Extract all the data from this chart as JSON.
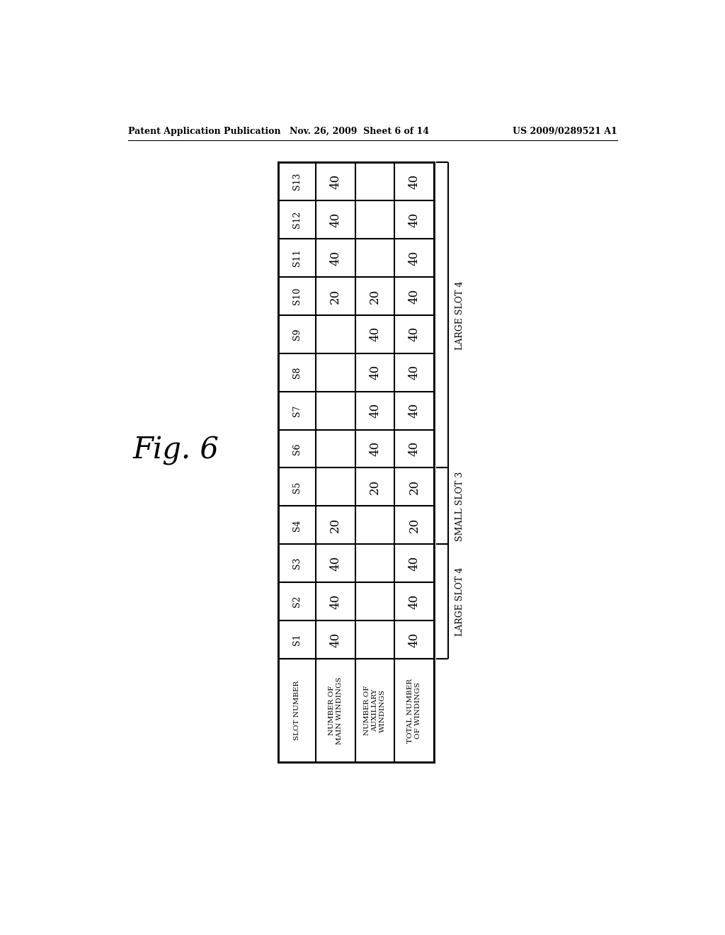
{
  "title_left": "Patent Application Publication",
  "title_mid": "Nov. 26, 2009  Sheet 6 of 14",
  "title_right": "US 2009/0289521 A1",
  "fig_label": "Fig. 6",
  "slots_top_to_bottom": [
    "S13",
    "S12",
    "S11",
    "S10",
    "S9",
    "S8",
    "S7",
    "S6",
    "S5",
    "S4",
    "S3",
    "S2",
    "S1"
  ],
  "col_headers_bottom": [
    "SLOT NUMBER",
    "NUMBER OF\nMAIN WINDINGS",
    "NUMBER OF\nAUXILIARY\nWINDINGS",
    "TOTAL NUMBER\nOF WINDINGS"
  ],
  "main_windings_top_to_bottom": [
    40,
    40,
    40,
    20,
    "",
    "",
    "",
    "",
    "",
    20,
    40,
    40,
    40
  ],
  "aux_windings_top_to_bottom": [
    "",
    "",
    "",
    20,
    40,
    40,
    40,
    40,
    20,
    "",
    "",
    "",
    ""
  ],
  "total_windings_top_to_bottom": [
    40,
    40,
    40,
    40,
    40,
    40,
    40,
    40,
    20,
    20,
    40,
    40,
    40
  ],
  "bracket_groups": [
    {
      "rows": [
        10,
        11,
        12
      ],
      "label": "LARGE SLOT 4"
    },
    {
      "rows": [
        8,
        9
      ],
      "label": "SMALL SLOT 3"
    },
    {
      "rows": [
        0,
        1,
        2,
        3,
        4,
        5,
        6,
        7
      ],
      "label": "LARGE SLOT 4"
    }
  ],
  "background_color": "#ffffff",
  "line_color": "#000000",
  "text_color": "#000000",
  "font_family": "serif"
}
